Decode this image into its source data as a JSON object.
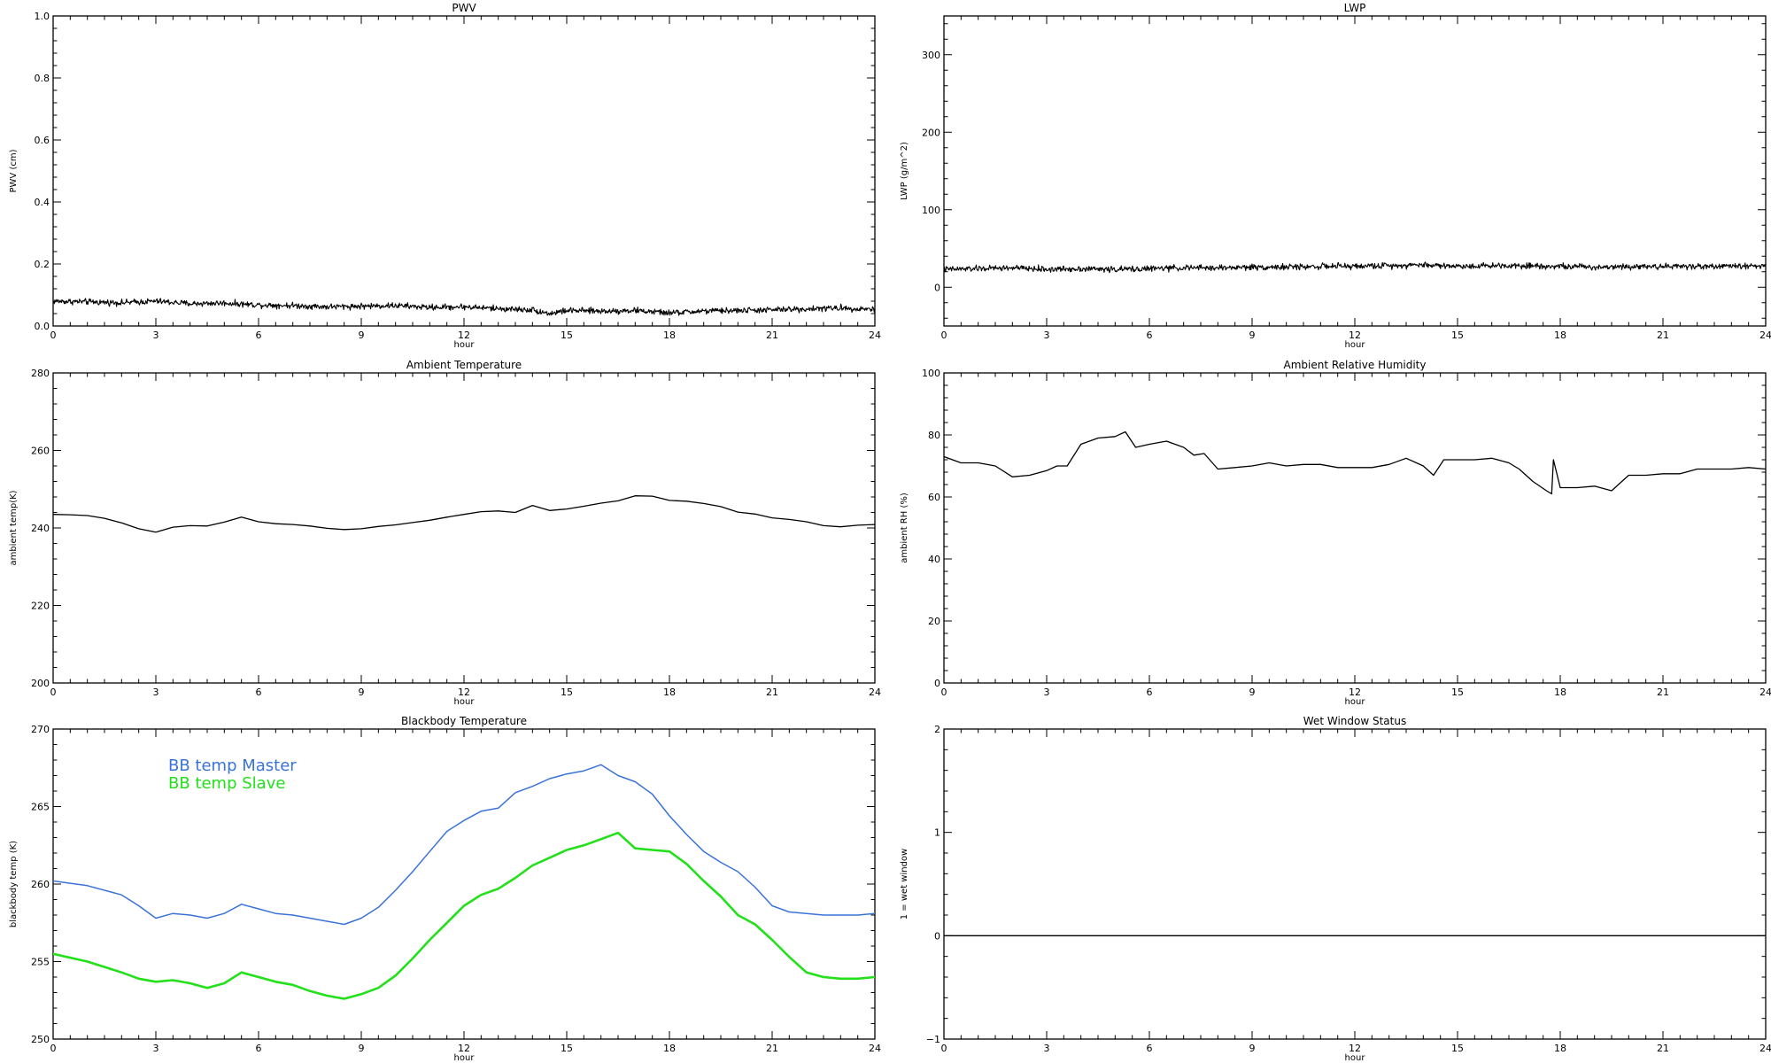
{
  "chart_data": [
    {
      "id": "pwv",
      "type": "line",
      "title": "PWV",
      "xlabel": "hour",
      "ylabel": "PWV (cm)",
      "xlim": [
        0,
        24
      ],
      "ylim": [
        0,
        1.0
      ],
      "xticks": [
        0,
        3,
        6,
        9,
        12,
        15,
        18,
        21,
        24
      ],
      "xtick_labels": [
        "0",
        "3",
        "6",
        "9",
        "12",
        "15",
        "18",
        "21",
        "24"
      ],
      "yticks": [
        0,
        0.2,
        0.4,
        0.6,
        0.8,
        1.0
      ],
      "ytick_labels": [
        "0.0",
        "0.2",
        "0.4",
        "0.6",
        "0.8",
        "1.0"
      ],
      "noisy": true,
      "series": [
        {
          "color": "#000000",
          "x": [
            0,
            1,
            2,
            3,
            4,
            5,
            6,
            7,
            8,
            9,
            10,
            11,
            12,
            13,
            14,
            14.5,
            15,
            16,
            17,
            18,
            19,
            20,
            21,
            22,
            23,
            24
          ],
          "y": [
            0.08,
            0.078,
            0.075,
            0.08,
            0.072,
            0.074,
            0.068,
            0.066,
            0.062,
            0.064,
            0.066,
            0.06,
            0.062,
            0.056,
            0.052,
            0.04,
            0.05,
            0.048,
            0.05,
            0.042,
            0.048,
            0.05,
            0.052,
            0.055,
            0.058,
            0.054
          ]
        }
      ]
    },
    {
      "id": "lwp",
      "type": "line",
      "title": "LWP",
      "xlabel": "hour",
      "ylabel": "LWP (g/m^2)",
      "xlim": [
        0,
        24
      ],
      "ylim": [
        -50,
        350
      ],
      "xticks": [
        0,
        3,
        6,
        9,
        12,
        15,
        18,
        21,
        24
      ],
      "xtick_labels": [
        "0",
        "3",
        "6",
        "9",
        "12",
        "15",
        "18",
        "21",
        "24"
      ],
      "yticks": [
        0,
        100,
        200,
        300
      ],
      "ytick_labels": [
        "0",
        "100",
        "200",
        "300"
      ],
      "noisy": true,
      "series": [
        {
          "color": "#000000",
          "x": [
            0,
            1,
            2,
            3,
            4,
            5,
            6,
            7,
            8,
            9,
            10,
            11,
            12,
            13,
            14,
            15,
            16,
            17,
            18,
            19,
            20,
            21,
            22,
            23,
            24
          ],
          "y": [
            23,
            24,
            25,
            23,
            24,
            23,
            24,
            25,
            25,
            26,
            26,
            27,
            27,
            28,
            29,
            27,
            28,
            28,
            27,
            26,
            27,
            27,
            27,
            27,
            28
          ]
        }
      ]
    },
    {
      "id": "ambient-temperature",
      "type": "line",
      "title": "Ambient Temperature",
      "xlabel": "hour",
      "ylabel": "ambient temp(K)",
      "xlim": [
        0,
        24
      ],
      "ylim": [
        200,
        280
      ],
      "xticks": [
        0,
        3,
        6,
        9,
        12,
        15,
        18,
        21,
        24
      ],
      "xtick_labels": [
        "0",
        "3",
        "6",
        "9",
        "12",
        "15",
        "18",
        "21",
        "24"
      ],
      "yticks": [
        200,
        220,
        240,
        260,
        280
      ],
      "ytick_labels": [
        "200",
        "220",
        "240",
        "260",
        "280"
      ],
      "series": [
        {
          "color": "#000000",
          "x": [
            0,
            0.5,
            1,
            1.5,
            2,
            2.5,
            3,
            3.5,
            4,
            4.5,
            5,
            5.5,
            6,
            6.5,
            7,
            7.5,
            8,
            8.5,
            9,
            9.5,
            10,
            10.5,
            11,
            11.5,
            12,
            12.5,
            13,
            13.5,
            14,
            14.5,
            15,
            15.5,
            16,
            16.5,
            17,
            17.5,
            18,
            18.5,
            19,
            19.5,
            20,
            20.5,
            21,
            21.5,
            22,
            22.5,
            23,
            23.5,
            24
          ],
          "y": [
            243.5,
            243.4,
            243.2,
            242.5,
            241.3,
            239.8,
            238.9,
            240.2,
            240.6,
            240.5,
            241.5,
            242.8,
            241.6,
            241.1,
            240.9,
            240.5,
            239.9,
            239.6,
            239.8,
            240.4,
            240.8,
            241.4,
            242.0,
            242.8,
            243.5,
            244.2,
            244.4,
            244.0,
            245.8,
            244.5,
            244.9,
            245.6,
            246.4,
            247.0,
            248.3,
            248.2,
            247.1,
            246.9,
            246.3,
            245.5,
            244.1,
            243.6,
            242.6,
            242.2,
            241.6,
            240.6,
            240.3,
            240.7,
            240.9
          ]
        }
      ]
    },
    {
      "id": "ambient-relative-humidity",
      "type": "line",
      "title": "Ambient Relative Humidity",
      "xlabel": "hour",
      "ylabel": "ambient RH (%)",
      "xlim": [
        0,
        24
      ],
      "ylim": [
        0,
        100
      ],
      "xticks": [
        0,
        3,
        6,
        9,
        12,
        15,
        18,
        21,
        24
      ],
      "xtick_labels": [
        "0",
        "3",
        "6",
        "9",
        "12",
        "15",
        "18",
        "21",
        "24"
      ],
      "yticks": [
        0,
        20,
        40,
        60,
        80,
        100
      ],
      "ytick_labels": [
        "0",
        "20",
        "40",
        "60",
        "80",
        "100"
      ],
      "series": [
        {
          "color": "#000000",
          "x": [
            0,
            0.5,
            1,
            1.5,
            2,
            2.5,
            3,
            3.3,
            3.6,
            4,
            4.5,
            5,
            5.3,
            5.6,
            6,
            6.5,
            7,
            7.3,
            7.6,
            8,
            8.5,
            9,
            9.5,
            10,
            10.5,
            11,
            11.5,
            12,
            12.5,
            13,
            13.5,
            14,
            14.3,
            14.6,
            15,
            15.5,
            16,
            16.5,
            16.8,
            17.2,
            17.6,
            17.75,
            17.8,
            18,
            18.5,
            19,
            19.5,
            20,
            20.5,
            21,
            21.5,
            22,
            22.5,
            23,
            23.5,
            24
          ],
          "y": [
            73,
            71,
            71,
            70,
            66.5,
            67,
            68.5,
            70,
            70,
            77,
            79,
            79.5,
            81,
            76,
            77,
            78,
            76,
            73.5,
            74,
            69,
            69.5,
            70,
            71,
            70,
            70.5,
            70.5,
            69.5,
            69.5,
            69.5,
            70.5,
            72.5,
            70,
            67,
            72,
            72,
            72,
            72.5,
            71,
            69,
            65,
            62,
            61,
            72,
            63,
            63,
            63.5,
            62,
            67,
            67,
            67.5,
            67.5,
            69,
            69,
            69,
            69.5,
            69
          ]
        }
      ]
    },
    {
      "id": "blackbody-temperature",
      "type": "line",
      "title": "Blackbody Temperature",
      "xlabel": "hour",
      "ylabel": "blackbody temp (K)",
      "xlim": [
        0,
        24
      ],
      "ylim": [
        250,
        270
      ],
      "xticks": [
        0,
        3,
        6,
        9,
        12,
        15,
        18,
        21,
        24
      ],
      "xtick_labels": [
        "0",
        "3",
        "6",
        "9",
        "12",
        "15",
        "18",
        "21",
        "24"
      ],
      "yticks": [
        250,
        255,
        260,
        265,
        270
      ],
      "ytick_labels": [
        "250",
        "255",
        "260",
        "265",
        "270"
      ],
      "legend": [
        "BB temp Master",
        "BB temp Slave"
      ],
      "series": [
        {
          "name": "BB temp Master",
          "color": "#3a73d8",
          "x": [
            0,
            1,
            2,
            2.5,
            3,
            3.5,
            4,
            4.5,
            5,
            5.5,
            6,
            6.5,
            7,
            7.5,
            8,
            8.5,
            9,
            9.5,
            10,
            10.5,
            11,
            11.5,
            12,
            12.5,
            13,
            13.5,
            14,
            14.5,
            15,
            15.5,
            16,
            16.5,
            17,
            17.5,
            18,
            18.5,
            19,
            19.5,
            20,
            20.5,
            21,
            21.5,
            22,
            22.5,
            23,
            23.5,
            24
          ],
          "y": [
            260.2,
            259.9,
            259.3,
            258.6,
            257.8,
            258.1,
            258.0,
            257.8,
            258.1,
            258.7,
            258.4,
            258.1,
            258.0,
            257.8,
            257.6,
            257.4,
            257.8,
            258.5,
            259.6,
            260.8,
            262.1,
            263.4,
            264.1,
            264.7,
            264.9,
            265.9,
            266.3,
            266.8,
            267.1,
            267.3,
            267.7,
            267.0,
            266.6,
            265.8,
            264.4,
            263.2,
            262.1,
            261.4,
            260.8,
            259.8,
            258.6,
            258.2,
            258.1,
            258.0,
            258.0,
            258.0,
            258.1
          ]
        },
        {
          "name": "BB temp Slave",
          "color": "#22e01a",
          "x": [
            0,
            1,
            2,
            2.5,
            3,
            3.5,
            4,
            4.5,
            5,
            5.5,
            6,
            6.5,
            7,
            7.5,
            8,
            8.5,
            9,
            9.5,
            10,
            10.5,
            11,
            11.5,
            12,
            12.5,
            13,
            13.5,
            14,
            14.5,
            15,
            15.5,
            16,
            16.5,
            17,
            17.5,
            18,
            18.5,
            19,
            19.5,
            20,
            20.5,
            21,
            21.5,
            22,
            22.5,
            23,
            23.5,
            24
          ],
          "y": [
            255.5,
            255.0,
            254.3,
            253.9,
            253.7,
            253.8,
            253.6,
            253.3,
            253.6,
            254.3,
            254.0,
            253.7,
            253.5,
            253.1,
            252.8,
            252.6,
            252.9,
            253.3,
            254.1,
            255.2,
            256.4,
            257.5,
            258.6,
            259.3,
            259.7,
            260.4,
            261.2,
            261.7,
            262.2,
            262.5,
            262.9,
            263.3,
            262.3,
            262.2,
            262.1,
            261.3,
            260.2,
            259.2,
            258.0,
            257.4,
            256.4,
            255.3,
            254.3,
            254.0,
            253.9,
            253.9,
            254.0
          ]
        }
      ]
    },
    {
      "id": "wet-window-status",
      "type": "line",
      "title": "Wet Window Status",
      "xlabel": "hour",
      "ylabel": "1 = wet window",
      "xlim": [
        0,
        24
      ],
      "ylim": [
        -1,
        2
      ],
      "xticks": [
        0,
        3,
        6,
        9,
        12,
        15,
        18,
        21,
        24
      ],
      "xtick_labels": [
        "0",
        "3",
        "6",
        "9",
        "12",
        "15",
        "18",
        "21",
        "24"
      ],
      "yticks": [
        -1,
        0,
        1,
        2
      ],
      "ytick_labels": [
        "−1",
        "0",
        "1",
        "2"
      ],
      "series": [
        {
          "color": "#000000",
          "x": [
            0,
            24
          ],
          "y": [
            0,
            0
          ]
        }
      ]
    }
  ]
}
